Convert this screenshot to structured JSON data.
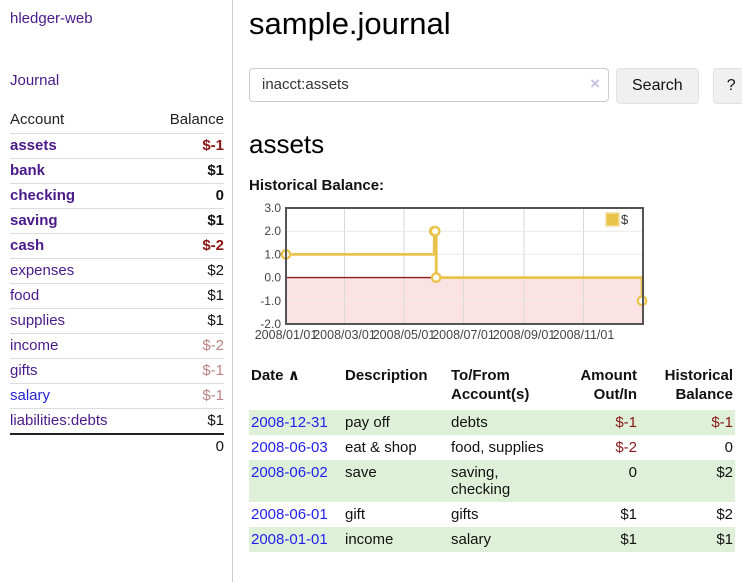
{
  "sidebar": {
    "app_title": "hledger-web",
    "journal_link": "Journal",
    "accounts_table": {
      "headers": {
        "account": "Account",
        "balance": "Balance"
      },
      "rows": [
        {
          "name": "assets",
          "depth": 0,
          "balance": "$-1",
          "matched": true,
          "balance_style": "neg-strong",
          "link_style": "purple"
        },
        {
          "name": "bank",
          "depth": 1,
          "balance": "$1",
          "matched": true,
          "balance_style": "pos",
          "link_style": "purple"
        },
        {
          "name": "checking",
          "depth": 2,
          "balance": "0",
          "matched": true,
          "balance_style": "pos",
          "link_style": "purple"
        },
        {
          "name": "saving",
          "depth": 2,
          "balance": "$1",
          "matched": true,
          "balance_style": "pos",
          "link_style": "purple"
        },
        {
          "name": "cash",
          "depth": 1,
          "balance": "$-2",
          "matched": true,
          "balance_style": "neg-strong",
          "link_style": "purple"
        },
        {
          "name": "expenses",
          "depth": 0,
          "balance": "$2",
          "matched": false,
          "balance_style": "pos",
          "link_style": "purple"
        },
        {
          "name": "food",
          "depth": 1,
          "balance": "$1",
          "matched": false,
          "balance_style": "pos",
          "link_style": "purple"
        },
        {
          "name": "supplies",
          "depth": 1,
          "balance": "$1",
          "matched": false,
          "balance_style": "pos",
          "link_style": "purple"
        },
        {
          "name": "income",
          "depth": 0,
          "balance": "$-2",
          "matched": false,
          "balance_style": "neg-muted",
          "link_style": "purple"
        },
        {
          "name": "gifts",
          "depth": 1,
          "balance": "$-1",
          "matched": false,
          "balance_style": "neg-muted",
          "link_style": "purple"
        },
        {
          "name": "salary",
          "depth": 1,
          "balance": "$-1",
          "matched": false,
          "balance_style": "neg-muted",
          "link_style": "blue"
        },
        {
          "name": "liabilities:debts",
          "depth": 0,
          "balance": "$1",
          "matched": false,
          "balance_style": "pos",
          "link_style": "purple"
        }
      ],
      "total": "0"
    }
  },
  "header": {
    "title": "sample.journal"
  },
  "search": {
    "value": "inacct:assets",
    "clear_icon": "×",
    "button_label": "Search",
    "help_label": "?"
  },
  "account_page": {
    "heading": "assets",
    "chart_label": "Historical Balance:"
  },
  "chart_data": {
    "type": "line",
    "step": true,
    "title": "Historical Balance",
    "series": [
      {
        "name": "$",
        "color": "#e9c34a",
        "points": [
          [
            "2008-01-01",
            1.0
          ],
          [
            "2008-06-01",
            2.0
          ],
          [
            "2008-06-02",
            2.0
          ],
          [
            "2008-06-03",
            0.0
          ],
          [
            "2008-12-31",
            -1.0
          ]
        ]
      }
    ],
    "x_range": [
      "2008-01-01",
      "2009-01-01"
    ],
    "ylim": [
      -2.0,
      3.0
    ],
    "yticks": [
      3.0,
      2.0,
      1.0,
      0.0,
      -1.0,
      -2.0
    ],
    "xticks": [
      "2008/01/01",
      "2008/03/01",
      "2008/05/01",
      "2008/07/01",
      "2008/09/01",
      "2008/11/01"
    ],
    "legend": {
      "label": "$",
      "position": "top-right"
    },
    "grid": true,
    "negative_region_fill": "#fbe3e4",
    "zero_line_color": "#8b1a1a",
    "border_color": "#545454",
    "point_fill": "#ffffff"
  },
  "register": {
    "headers": {
      "date": "Date",
      "sort_icon": "∧",
      "description": "Description",
      "tofrom": "To/From\nAccount(s)",
      "amount": "Amount\nOut/In",
      "balance": "Historical\nBalance"
    },
    "rows": [
      {
        "date": "2008-12-31",
        "description": "pay off",
        "tofrom": "debts",
        "amount": "$-1",
        "balance": "$-1",
        "amount_style": "neg",
        "balance_style": "neg",
        "shaded": true
      },
      {
        "date": "2008-06-03",
        "description": "eat & shop",
        "tofrom": "food, supplies",
        "amount": "$-2",
        "balance": "0",
        "amount_style": "neg",
        "balance_style": "pos",
        "shaded": false
      },
      {
        "date": "2008-06-02",
        "description": "save",
        "tofrom": "saving,\nchecking",
        "amount": "0",
        "balance": "$2",
        "amount_style": "pos",
        "balance_style": "pos",
        "shaded": true
      },
      {
        "date": "2008-06-01",
        "description": "gift",
        "tofrom": "gifts",
        "amount": "$1",
        "balance": "$2",
        "amount_style": "pos",
        "balance_style": "pos",
        "shaded": false
      },
      {
        "date": "2008-01-01",
        "description": "income",
        "tofrom": "salary",
        "amount": "$1",
        "balance": "$1",
        "amount_style": "pos",
        "balance_style": "pos",
        "shaded": true
      }
    ]
  },
  "colors": {
    "link_purple": "#4a1a8a",
    "link_blue": "#2222ee",
    "negative_strong": "#8b1515",
    "negative_muted": "#bd8282",
    "row_shade_green": "#dff0d8",
    "chart_line_gold": "#e9c34a",
    "chart_negative_pink": "#fbe3e4",
    "chart_zero_line": "#8b1a1a"
  }
}
